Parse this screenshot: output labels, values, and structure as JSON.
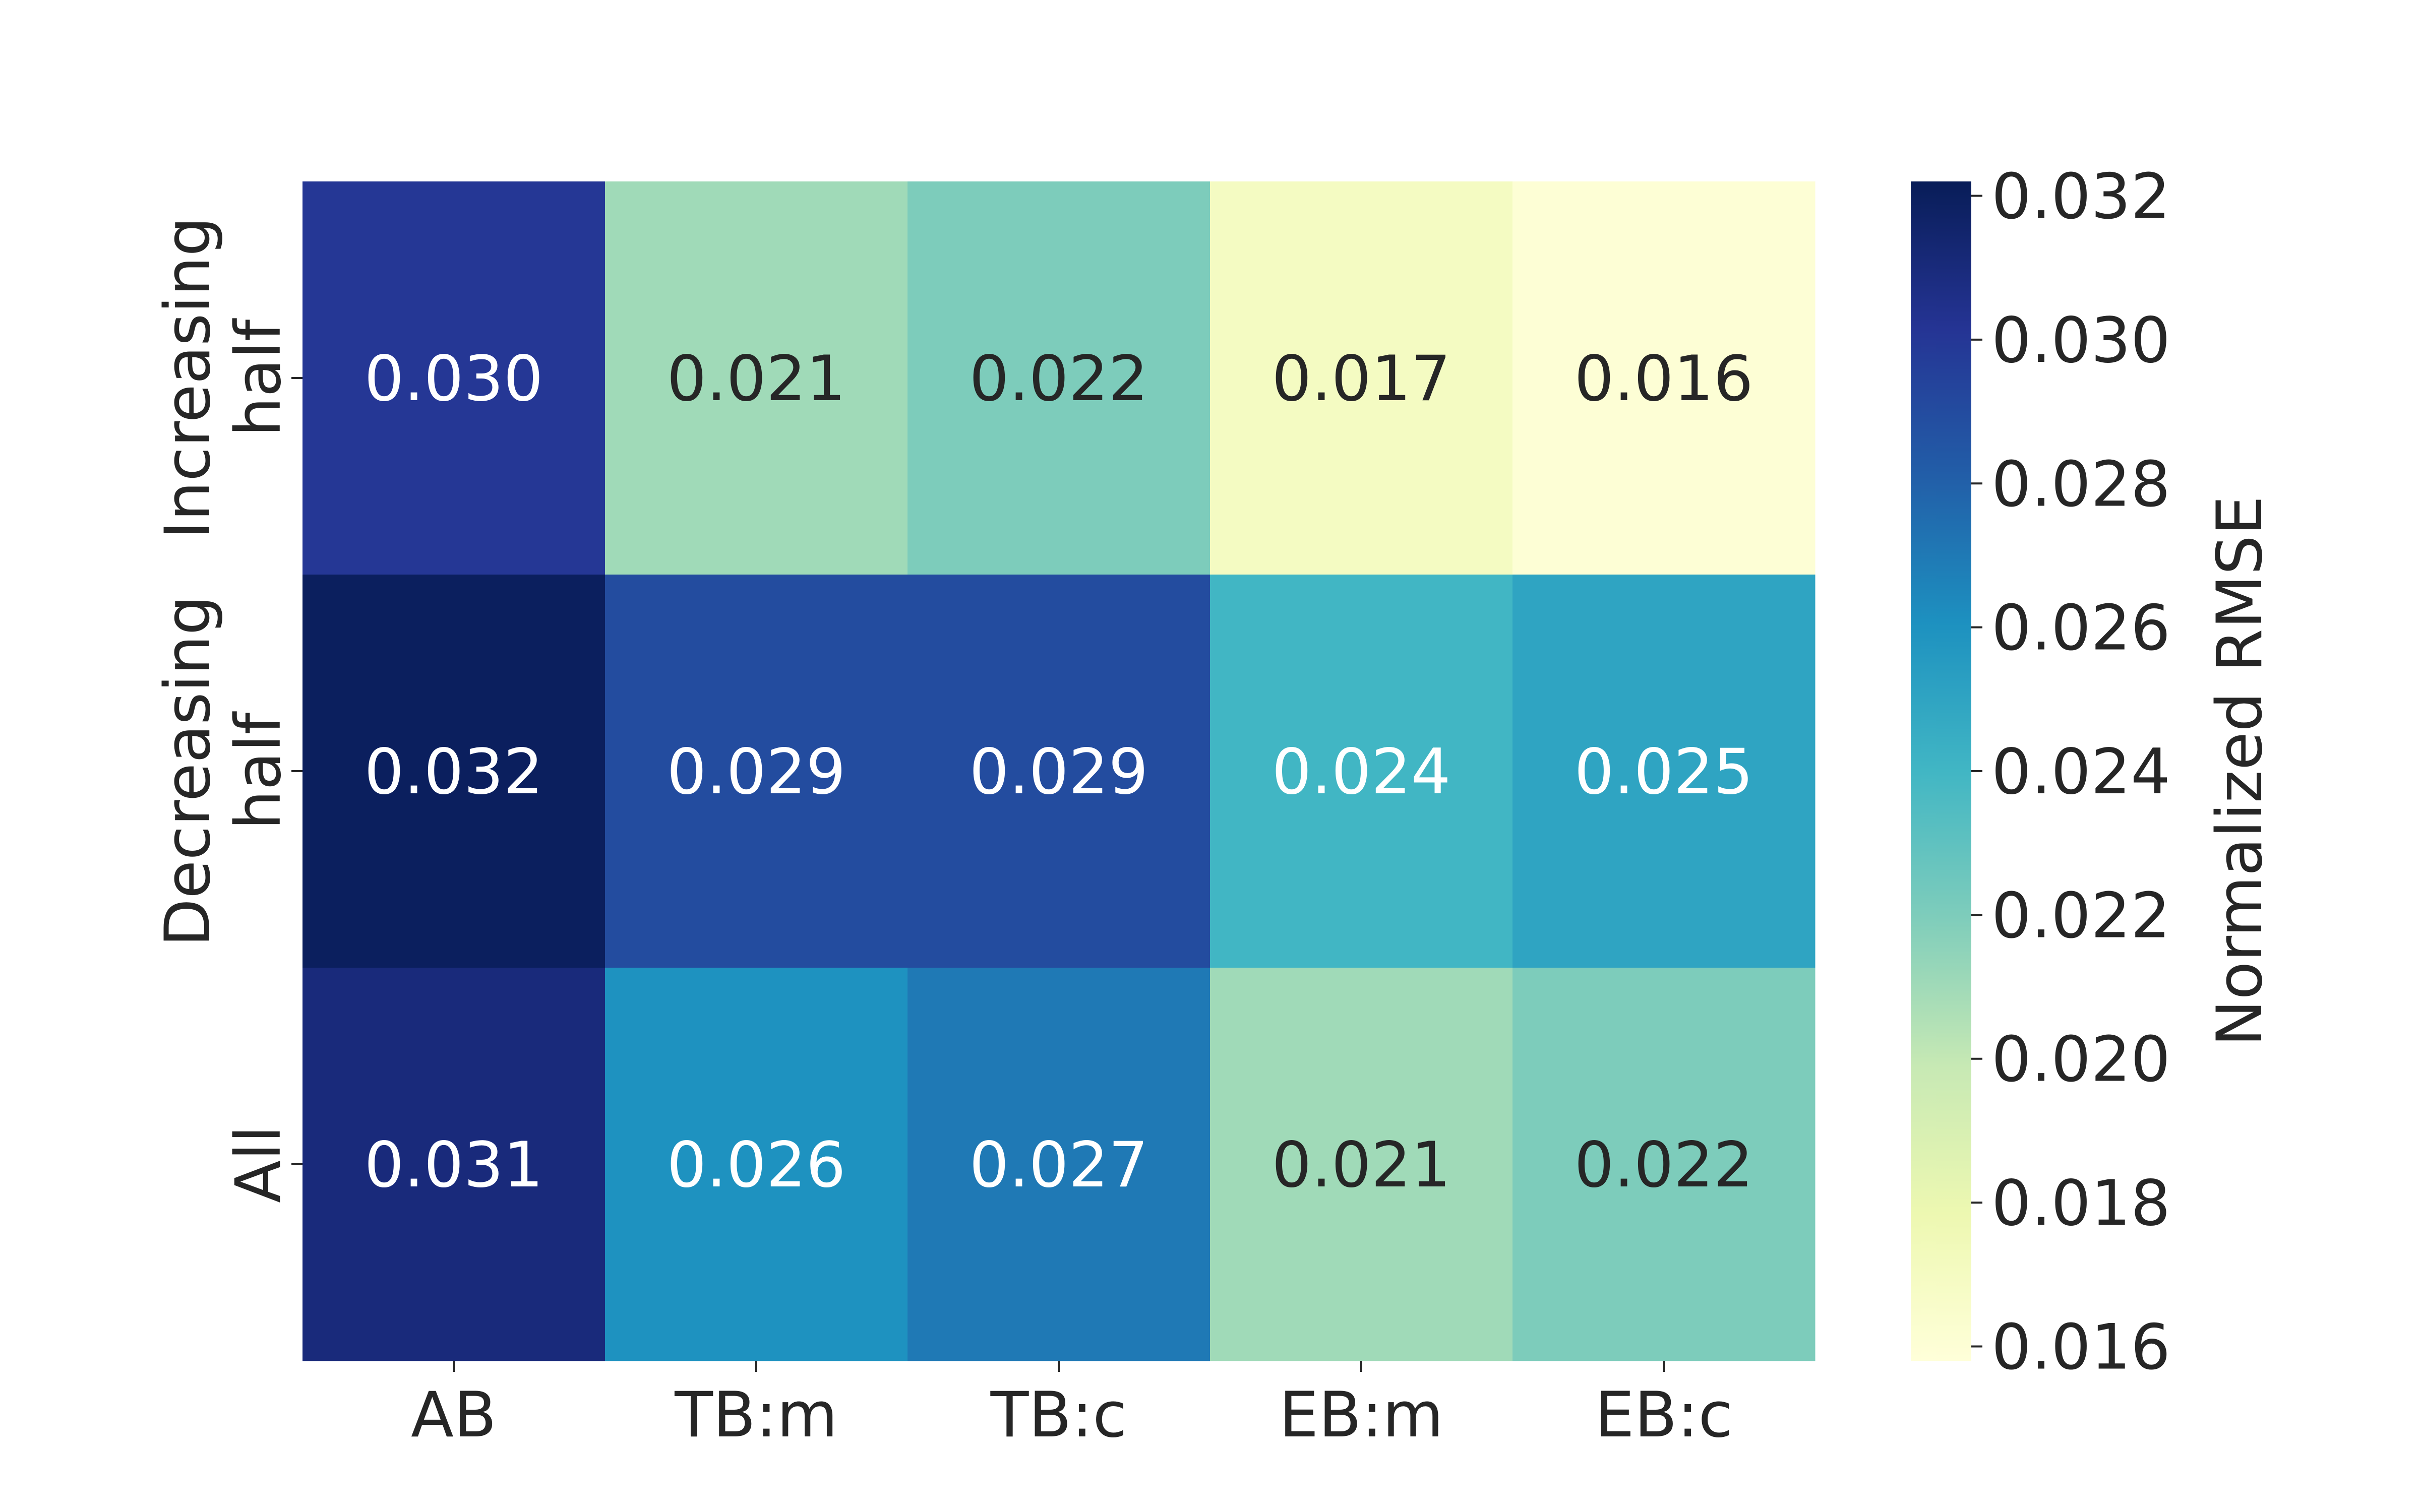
{
  "chart_data": {
    "type": "heatmap",
    "title": "",
    "xlabel": "",
    "ylabel": "",
    "x_categories": [
      "AB",
      "TB:m",
      "TB:c",
      "EB:m",
      "EB:c"
    ],
    "y_categories": [
      [
        "Increasing",
        "half"
      ],
      [
        "Decreasing",
        "half"
      ],
      [
        "All"
      ]
    ],
    "values": [
      [
        0.03,
        0.021,
        0.022,
        0.017,
        0.016
      ],
      [
        0.032,
        0.029,
        0.029,
        0.024,
        0.025
      ],
      [
        0.031,
        0.026,
        0.027,
        0.021,
        0.022
      ]
    ],
    "value_format": "0.000",
    "colormap": "YlGnBu",
    "color_range": [
      0.0158,
      0.0322
    ],
    "colorbar": {
      "label": "Normalized RMSE",
      "ticks": [
        "0.016",
        "0.018",
        "0.020",
        "0.022",
        "0.024",
        "0.026",
        "0.028",
        "0.030",
        "0.032"
      ]
    }
  }
}
